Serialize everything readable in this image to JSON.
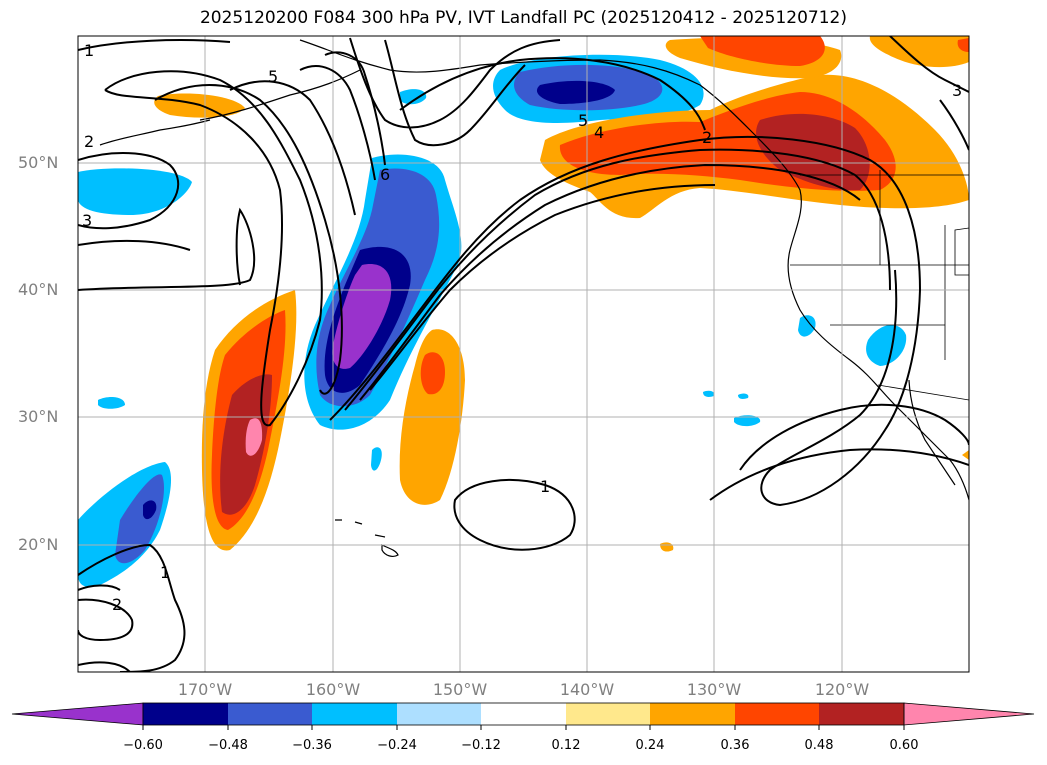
{
  "title": "2025120200 F084 300 hPa PV, IVT Landfall PC (2025120412 - 2025120712)",
  "lat_labels": [
    "50°N",
    "40°N",
    "30°N",
    "20°N"
  ],
  "lon_labels": [
    "170°W",
    "160°W",
    "150°W",
    "140°W",
    "130°W",
    "120°W"
  ],
  "colorbar": {
    "ticks": [
      "−0.60",
      "−0.48",
      "−0.36",
      "−0.24",
      "−0.12",
      "0.12",
      "0.24",
      "0.36",
      "0.48",
      "0.60"
    ],
    "colors": [
      "#9932CC",
      "#00008B",
      "#3A5BD0",
      "#00BFFF",
      "#ADDFFF",
      "#FFFFFF",
      "#FFE88C",
      "#FFA500",
      "#FF4500",
      "#B22222",
      "#FF85AD"
    ]
  },
  "contour_labels": [
    "1",
    "5",
    "2",
    "3",
    "6",
    "5",
    "4",
    "2",
    "3",
    "1",
    "1",
    "2"
  ],
  "chart_data": {
    "type": "map",
    "title": "2025120200 F084 300 hPa PV, IVT Landfall PC (2025120412 - 2025120712)",
    "xlim": [
      -180,
      -110
    ],
    "ylim": [
      10,
      60
    ],
    "fill_variable": "IVT landfall PC correlation",
    "contour_variable": "300 hPa PV",
    "levels": [
      -0.6,
      -0.48,
      -0.36,
      -0.24,
      -0.12,
      0.12,
      0.24,
      0.36,
      0.48,
      0.6
    ]
  }
}
